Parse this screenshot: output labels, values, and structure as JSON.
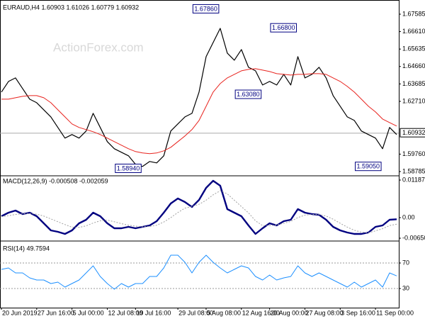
{
  "chart_data": [
    {
      "type": "line",
      "title": "EURAUD,H4  1.60903 1.61026 1.60779 1.60932",
      "xlim": [
        0,
        56
      ],
      "ylim": [
        1.58587,
        1.68219
      ],
      "yticks": [
        1.67585,
        {
          "value": 1.6661,
          "label": "1.66610"
        },
        1.65635,
        {
          "value": 1.6466,
          "label": "1.64660"
        },
        1.63685,
        {
          "value": 1.6271,
          "label": "1.62710"
        },
        {
          "value": 1.5976,
          "label": "1.59760"
        },
        1.58785
      ],
      "grid": false,
      "series": [
        {
          "color": "#000000",
          "width": 1.2,
          "values": [
            1.63229,
            1.63823,
            1.64021,
            1.63427,
            1.62833,
            1.62635,
            1.62239,
            1.61843,
            1.61249,
            1.60655,
            1.60853,
            1.60655,
            1.61051,
            1.62041,
            1.61249,
            1.60457,
            1.60061,
            1.59863,
            1.59665,
            1.5919,
            1.59071,
            1.59348,
            1.59269,
            1.59665,
            1.61051,
            1.61447,
            1.61843,
            1.62041,
            1.63229,
            1.65209,
            1.66001,
            1.66793,
            1.65407,
            1.65011,
            1.65605,
            1.64615,
            1.64417,
            1.63625,
            1.63823,
            1.63625,
            1.64219,
            1.63625,
            1.65209,
            1.64021,
            1.64219,
            1.64615,
            1.64021,
            1.63031,
            1.62437,
            1.61843,
            1.61645,
            1.61051,
            1.60853,
            1.60655,
            1.60061,
            1.61249,
            1.60853
          ]
        },
        {
          "color": "#e8231e",
          "width": 1,
          "values": [
            1.62833,
            1.62833,
            1.62912,
            1.62991,
            1.63031,
            1.63031,
            1.62912,
            1.62635,
            1.62239,
            1.61843,
            1.61447,
            1.61249,
            1.6113,
            1.61011,
            1.60853,
            1.60655,
            1.60457,
            1.60259,
            1.60061,
            1.59903,
            1.59823,
            1.59784,
            1.59823,
            1.59942,
            1.6014,
            1.60457,
            1.60774,
            1.6113,
            1.61645,
            1.62437,
            1.63229,
            1.63704,
            1.64021,
            1.64219,
            1.64417,
            1.64496,
            1.64536,
            1.64457,
            1.64377,
            1.64259,
            1.64219,
            1.64179,
            1.64219,
            1.64219,
            1.64259,
            1.64259,
            1.64219,
            1.64021,
            1.63823,
            1.63546,
            1.63229,
            1.62833,
            1.62437,
            1.6212,
            1.61724,
            1.61526,
            1.61328
          ]
        }
      ],
      "annotations": [
        {
          "x": 31,
          "value": 1.6786,
          "label": "1.67860"
        },
        {
          "x": 42,
          "value": 1.668,
          "label": "1.66800"
        },
        {
          "x": 37,
          "value": 1.6308,
          "label": "1.63080"
        },
        {
          "x": 20,
          "value": 1.5894,
          "label": "1.58940"
        },
        {
          "x": 54,
          "value": 1.5905,
          "label": "1.59050"
        }
      ],
      "last_price": 1.60932
    },
    {
      "type": "line",
      "title": "MACD(12,26,9) -0.000508 -0.002059",
      "xlim": [
        0,
        56
      ],
      "ylim": [
        -0.00717,
        0.01299
      ],
      "yticks": [
        0.01187,
        {
          "value": 0,
          "label": "0.00"
        },
        -0.006502
      ],
      "grid": false,
      "series": [
        {
          "color": "#000080",
          "width": 2.4,
          "values": [
            0.00045,
            0.00157,
            0.00224,
            0.00112,
            0.00157,
            0.00045,
            -0.00179,
            -0.00403,
            -0.00448,
            -0.00515,
            -0.00403,
            -0.00179,
            -0.00067,
            0.00157,
            0.00045,
            -0.00179,
            -0.00336,
            -0.00336,
            -0.00291,
            -0.00336,
            -0.00291,
            -0.00246,
            -0.00112,
            0.00157,
            0.00448,
            0.00605,
            0.00493,
            0.00336,
            0.0056,
            0.00941,
            0.01165,
            0.01008,
            0.00269,
            0.00157,
            0.00045,
            -0.00246,
            -0.00515,
            -0.00336,
            -0.00179,
            -0.00246,
            -0.00112,
            -0.00067,
            0.00269,
            0.00157,
            0.00112,
            0.0009,
            -0.00067,
            -0.00291,
            -0.00403,
            -0.0047,
            -0.00515,
            -0.00515,
            -0.0047,
            -0.00291,
            -0.00246,
            -0.00067,
            -0.00051
          ]
        },
        {
          "color": "#a0a0a0",
          "width": 1,
          "style": "dotted",
          "values": [
            0.0003,
            0.0006,
            0.001,
            0.0012,
            0.0013,
            0.0011,
            0.0005,
            -0.0004,
            -0.0013,
            -0.0022,
            -0.003,
            -0.0031,
            -0.0026,
            -0.0017,
            -0.001,
            -0.0008,
            -0.0013,
            -0.0019,
            -0.0024,
            -0.0027,
            -0.0029,
            -0.0028,
            -0.0024,
            -0.0014,
            0,
            0.0016,
            0.003,
            0.0035,
            0.0042,
            0.0055,
            0.0072,
            0.0085,
            0.0075,
            0.0055,
            0.0035,
            0.0015,
            -0.001,
            -0.0025,
            -0.0025,
            -0.0023,
            -0.0018,
            -0.0012,
            0,
            0.0008,
            0.001,
            0.001,
            0.0005,
            -0.0005,
            -0.0018,
            -0.003,
            -0.004,
            -0.0046,
            -0.0048,
            -0.0042,
            -0.0035,
            -0.0025,
            -0.00206
          ]
        }
      ]
    },
    {
      "type": "line",
      "title": "RSI(14) 49.7594",
      "xlim": [
        0,
        56
      ],
      "ylim": [
        0,
        100
      ],
      "yticks": [
        70,
        30
      ],
      "grid": true,
      "series": [
        {
          "color": "#1e90ff",
          "width": 1,
          "values": [
            60,
            62.2,
            54.4,
            54.4,
            46.7,
            43.3,
            43.3,
            37.8,
            40,
            32.2,
            37.8,
            43.3,
            54.4,
            65.6,
            48.9,
            37.8,
            28.9,
            37.8,
            32.2,
            37.8,
            37.8,
            48.9,
            48.9,
            62.2,
            82.2,
            82.2,
            71.1,
            54.4,
            71.1,
            82.2,
            71.1,
            62.2,
            54.4,
            60,
            65.6,
            62.2,
            48.9,
            43.3,
            51.1,
            43.3,
            46.7,
            48.9,
            65.6,
            54.4,
            48.9,
            54.4,
            48.9,
            43.3,
            37.8,
            32.2,
            40,
            32.2,
            37.8,
            43.3,
            32.2,
            54.4,
            49.76
          ]
        }
      ],
      "xticks": [
        {
          "value": 0,
          "label": "20 Jun 2019"
        },
        {
          "value": 5,
          "label": "27 Jun 16:00"
        },
        {
          "value": 10,
          "label": "5 Jul 00:00"
        },
        {
          "value": 15,
          "label": "12 Jul 08:00"
        },
        {
          "value": 19,
          "label": "19 Jul 16:00"
        },
        {
          "value": 25,
          "label": "29 Jul 08:00"
        },
        {
          "value": 29,
          "label": "5 Aug 08:00"
        },
        {
          "value": 34,
          "label": "12 Aug 16:00"
        },
        {
          "value": 38,
          "label": "20 Aug 00:00"
        },
        {
          "value": 43,
          "label": "27 Aug 08:00"
        },
        {
          "value": 48,
          "label": "3 Sep 16:00"
        },
        {
          "value": 53,
          "label": "11 Sep 00:00"
        }
      ]
    }
  ]
}
